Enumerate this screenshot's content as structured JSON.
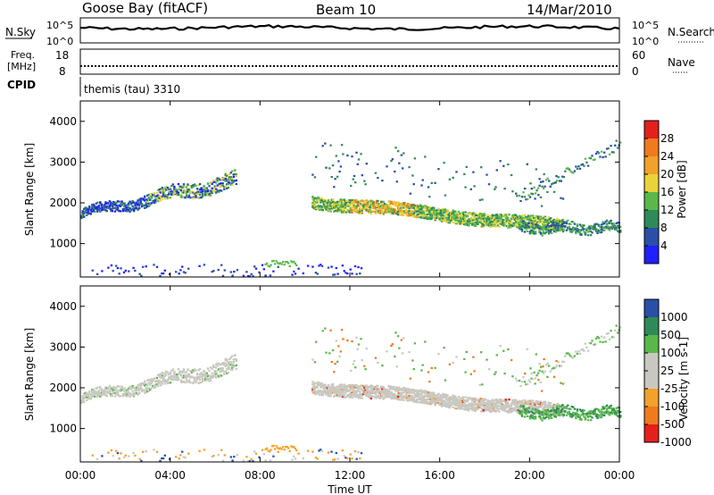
{
  "header": {
    "station": "Goose Bay (fitACF)",
    "beam": "Beam 10",
    "date": "14/Mar/2010"
  },
  "noise_panel": {
    "left_label": "N.Sky",
    "right_label": "N.Search",
    "tick_top": "10^5",
    "tick_bottom": "10^0",
    "right_tick_top": "10^5",
    "right_tick_bottom": "10^0"
  },
  "freq_panel": {
    "left_label_line1": "Freq.",
    "left_label_line2": "[MHz]",
    "right_label": "Nave",
    "left_tick_top": "18",
    "left_tick_bottom": "8",
    "right_tick_top": "60",
    "right_tick_bottom": "0"
  },
  "cpid": {
    "label": "CPID",
    "value": "themis (tau) 3310"
  },
  "colors": {
    "power": [
      "#1f1fff",
      "#2a4fa8",
      "#2f8a5a",
      "#5ab84a",
      "#e9d23a",
      "#f2a12a",
      "#f07a1e",
      "#e3201c"
    ],
    "velocity": [
      "#e3201c",
      "#f07a1e",
      "#f2a12a",
      "#c8c8c0",
      "#c8c8c0",
      "#5ab84a",
      "#2f8a5a",
      "#2a4fa8"
    ],
    "ground": "#c8c8c0"
  },
  "chart_data": [
    {
      "type": "heatmap",
      "panel": "power",
      "ylabel": "Slant Range [km]",
      "yticks": [
        "1000",
        "2000",
        "3000",
        "4000"
      ],
      "ylim": [
        180,
        4500
      ],
      "xlim": [
        0,
        24
      ],
      "colorbar_label": "Power [dB]",
      "colorbar_ticks": [
        "4",
        "8",
        "12",
        "16",
        "20",
        "24",
        "28"
      ],
      "clim": [
        0,
        30
      ],
      "bands": [
        {
          "t0": 0.0,
          "t1": 6.9,
          "r0": 1600,
          "r1": 2700,
          "level": "mixed"
        },
        {
          "t0": 10.3,
          "t1": 19.5,
          "r0": 1400,
          "r1": 2100,
          "level": "high"
        },
        {
          "t0": 10.3,
          "t1": 24.0,
          "r0": 1300,
          "r1": 3300,
          "level": "low"
        },
        {
          "t0": 0.0,
          "t1": 12.5,
          "r0": 180,
          "r1": 600,
          "level": "low"
        }
      ]
    },
    {
      "type": "heatmap",
      "panel": "velocity",
      "ylabel": "Slant Range [km]",
      "yticks": [
        "1000",
        "2000",
        "3000",
        "4000"
      ],
      "ylim": [
        180,
        4500
      ],
      "xlim": [
        0,
        24
      ],
      "xlabel": "Time UT",
      "xticks": [
        "00:00",
        "04:00",
        "08:00",
        "12:00",
        "16:00",
        "20:00",
        "00:00"
      ],
      "colorbar_label": "Velocity [m s-1]",
      "colorbar_ticks": [
        "1000",
        "500",
        "100",
        "25",
        "-25",
        "-100",
        "-500",
        "-1000"
      ],
      "clim": [
        -1000,
        1000
      ]
    }
  ]
}
